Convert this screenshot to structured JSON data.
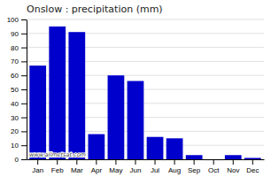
{
  "chart_data": {
    "type": "bar",
    "title": "Onslow : precipitation (mm)",
    "categories": [
      "Jan",
      "Feb",
      "Mar",
      "Apr",
      "May",
      "Jun",
      "Jul",
      "Aug",
      "Sep",
      "Oct",
      "Nov",
      "Dec"
    ],
    "values": [
      67,
      95,
      91,
      18,
      60,
      56,
      16,
      15,
      3,
      0,
      3,
      1
    ],
    "color": "#0000CC",
    "ylim": [
      0,
      100
    ],
    "yticks": [
      0,
      10,
      20,
      30,
      40,
      50,
      60,
      70,
      80,
      90,
      100
    ],
    "grid": true,
    "annotations": [
      "www.allmetsat.com"
    ]
  }
}
